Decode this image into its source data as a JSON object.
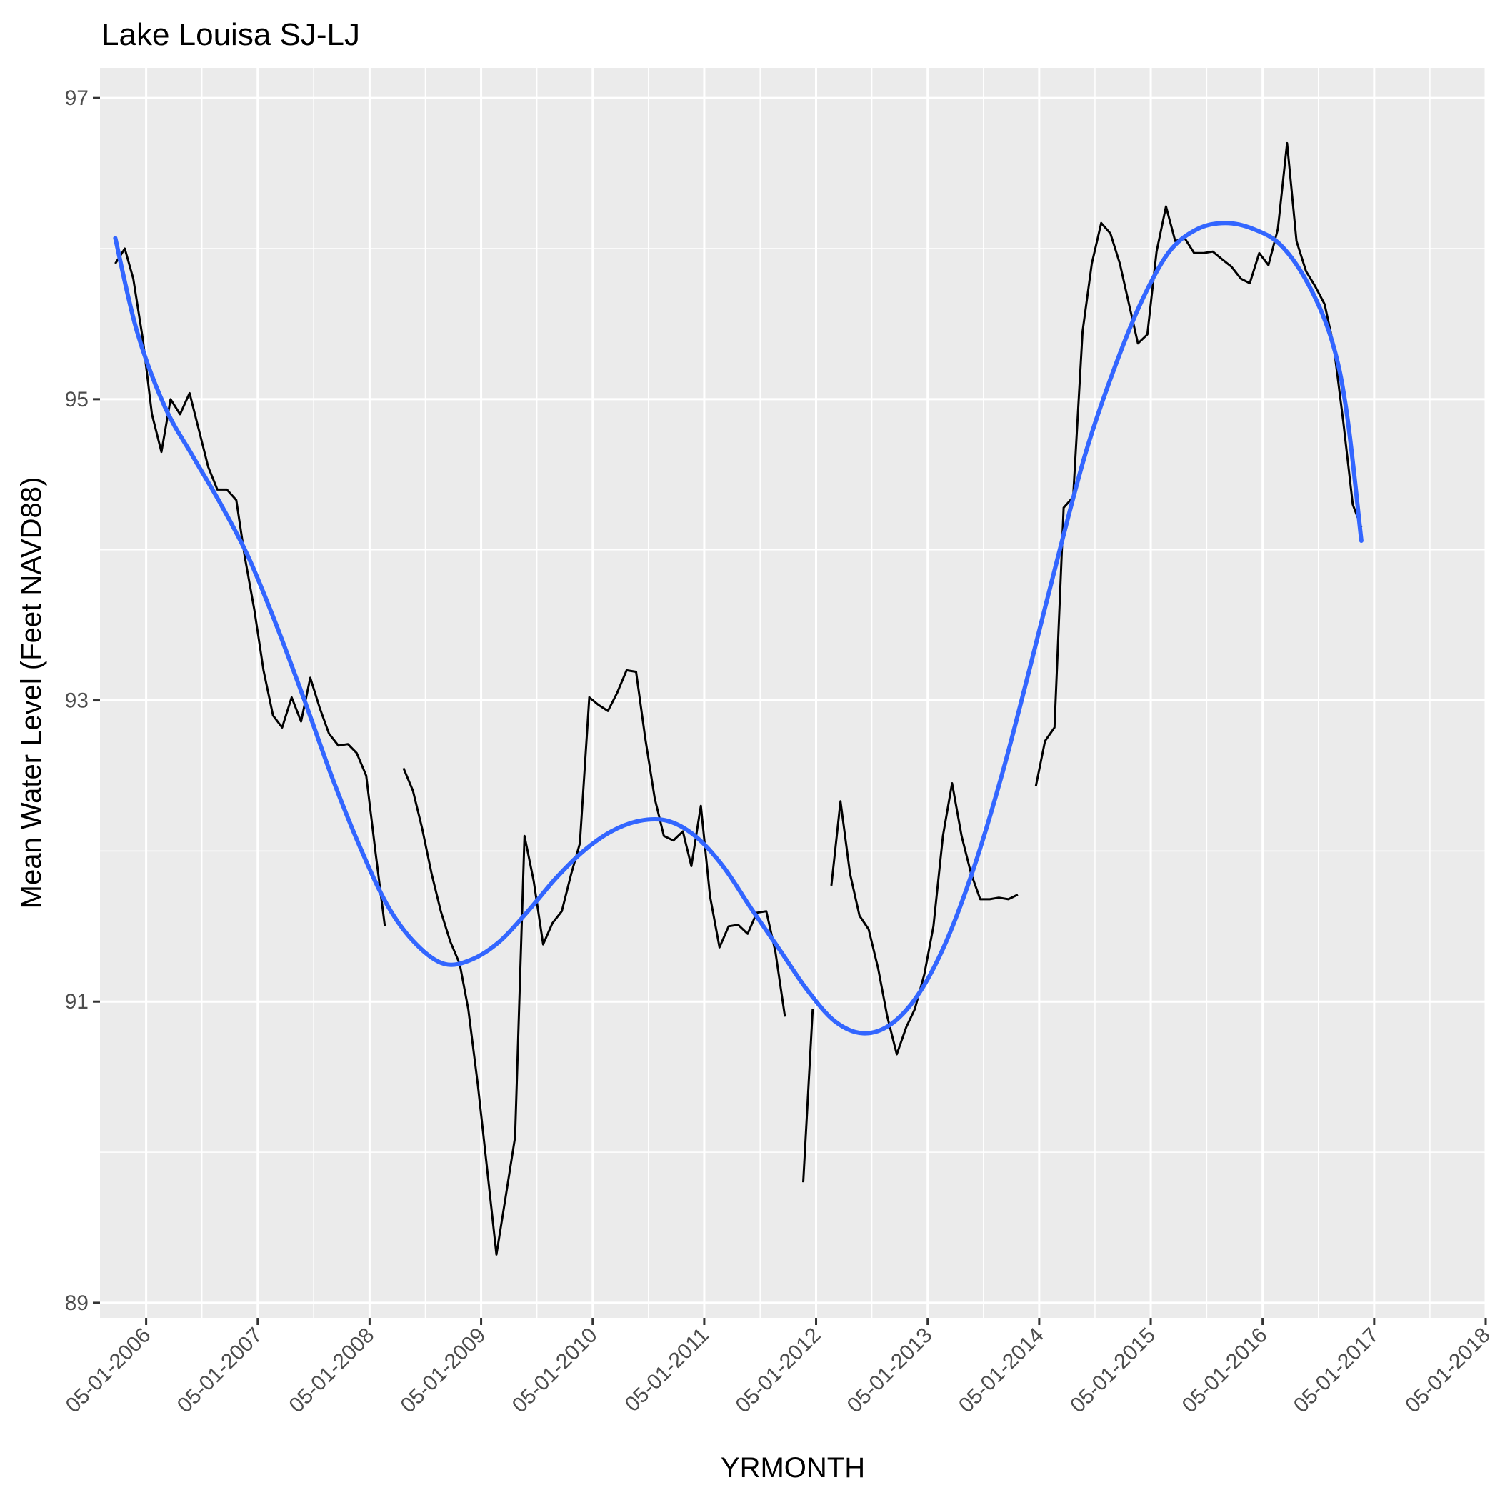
{
  "chart_data": {
    "type": "line",
    "title": "Lake Louisa SJ-LJ",
    "xlabel": "YRMONTH",
    "ylabel": "Mean Water Level (Feet NAVD88)",
    "x_axis": {
      "kind": "date",
      "range": [
        "2005-12-01",
        "2018-05-01"
      ],
      "ticks": [
        "05-01-2006",
        "05-01-2007",
        "05-01-2008",
        "05-01-2009",
        "05-01-2010",
        "05-01-2011",
        "05-01-2012",
        "05-01-2013",
        "05-01-2014",
        "05-01-2015",
        "05-01-2016",
        "05-01-2017",
        "05-01-2018"
      ]
    },
    "y_axis": {
      "range": [
        88.9,
        97.2
      ],
      "ticks": [
        89,
        91,
        93,
        95,
        97
      ]
    },
    "grid": true,
    "legend": "none",
    "colors": {
      "panel_background": "#ebebeb",
      "grid": "#ffffff",
      "observed_line": "#000000",
      "smooth_line": "#3366ff"
    },
    "series": [
      {
        "role": "observed",
        "segments": [
          [
            [
              "2006-01-20",
              95.9
            ],
            [
              "2006-02-20",
              96.0
            ],
            [
              "2006-03-20",
              95.8
            ],
            [
              "2006-04-20",
              95.4
            ],
            [
              "2006-05-20",
              94.9
            ],
            [
              "2006-06-20",
              94.65
            ],
            [
              "2006-07-20",
              95.0
            ],
            [
              "2006-08-20",
              94.9
            ],
            [
              "2006-09-20",
              95.04
            ],
            [
              "2006-10-20",
              94.8
            ],
            [
              "2006-11-20",
              94.55
            ],
            [
              "2006-12-20",
              94.4
            ],
            [
              "2007-01-20",
              94.4
            ],
            [
              "2007-02-20",
              94.33
            ],
            [
              "2007-03-20",
              93.95
            ],
            [
              "2007-04-20",
              93.6
            ],
            [
              "2007-05-20",
              93.2
            ],
            [
              "2007-06-20",
              92.9
            ],
            [
              "2007-07-20",
              92.82
            ],
            [
              "2007-08-20",
              93.02
            ],
            [
              "2007-09-20",
              92.86
            ],
            [
              "2007-10-20",
              93.15
            ],
            [
              "2007-11-20",
              92.95
            ],
            [
              "2007-12-20",
              92.78
            ],
            [
              "2008-01-20",
              92.7
            ],
            [
              "2008-02-20",
              92.71
            ],
            [
              "2008-03-20",
              92.65
            ],
            [
              "2008-04-20",
              92.5
            ],
            [
              "2008-05-20",
              92.0
            ],
            [
              "2008-06-20",
              91.5
            ]
          ],
          [
            [
              "2008-08-20",
              92.55
            ],
            [
              "2008-09-20",
              92.4
            ],
            [
              "2008-10-20",
              92.15
            ],
            [
              "2008-11-20",
              91.85
            ],
            [
              "2008-12-20",
              91.6
            ],
            [
              "2009-01-20",
              91.4
            ],
            [
              "2009-02-20",
              91.25
            ],
            [
              "2009-03-20",
              90.95
            ],
            [
              "2009-04-20",
              90.45
            ],
            [
              "2009-05-20",
              89.9
            ],
            [
              "2009-06-20",
              89.32
            ],
            [
              "2009-07-20",
              89.7
            ],
            [
              "2009-08-20",
              90.1
            ],
            [
              "2009-09-20",
              92.1
            ],
            [
              "2009-10-20",
              91.8
            ],
            [
              "2009-11-20",
              91.38
            ],
            [
              "2009-12-20",
              91.52
            ],
            [
              "2010-01-20",
              91.6
            ],
            [
              "2010-02-20",
              91.85
            ],
            [
              "2010-03-20",
              92.05
            ],
            [
              "2010-04-20",
              93.02
            ],
            [
              "2010-05-20",
              92.97
            ],
            [
              "2010-06-20",
              92.93
            ],
            [
              "2010-07-20",
              93.05
            ],
            [
              "2010-08-20",
              93.2
            ],
            [
              "2010-09-20",
              93.19
            ],
            [
              "2010-10-20",
              92.75
            ],
            [
              "2010-11-20",
              92.35
            ],
            [
              "2010-12-20",
              92.1
            ],
            [
              "2011-01-20",
              92.07
            ],
            [
              "2011-02-20",
              92.13
            ],
            [
              "2011-03-20",
              91.9
            ],
            [
              "2011-04-20",
              92.3
            ],
            [
              "2011-05-20",
              91.7
            ],
            [
              "2011-06-20",
              91.36
            ],
            [
              "2011-07-20",
              91.5
            ],
            [
              "2011-08-20",
              91.51
            ],
            [
              "2011-09-20",
              91.45
            ],
            [
              "2011-10-20",
              91.59
            ],
            [
              "2011-11-20",
              91.6
            ],
            [
              "2011-12-20",
              91.33
            ],
            [
              "2012-01-20",
              90.9
            ]
          ],
          [
            [
              "2012-03-20",
              89.8
            ],
            [
              "2012-04-20",
              90.95
            ]
          ],
          [
            [
              "2012-06-20",
              91.77
            ],
            [
              "2012-07-20",
              92.33
            ],
            [
              "2012-08-20",
              91.85
            ],
            [
              "2012-09-20",
              91.57
            ],
            [
              "2012-10-20",
              91.48
            ],
            [
              "2012-11-20",
              91.22
            ],
            [
              "2012-12-20",
              90.9
            ],
            [
              "2013-01-20",
              90.65
            ],
            [
              "2013-02-20",
              90.83
            ],
            [
              "2013-03-20",
              90.95
            ],
            [
              "2013-04-20",
              91.18
            ],
            [
              "2013-05-20",
              91.5
            ],
            [
              "2013-06-20",
              92.1
            ],
            [
              "2013-07-20",
              92.45
            ],
            [
              "2013-08-20",
              92.1
            ],
            [
              "2013-09-20",
              91.85
            ],
            [
              "2013-10-20",
              91.68
            ],
            [
              "2013-11-20",
              91.68
            ],
            [
              "2013-12-20",
              91.69
            ],
            [
              "2014-01-20",
              91.68
            ],
            [
              "2014-02-20",
              91.71
            ]
          ],
          [
            [
              "2014-04-20",
              92.43
            ],
            [
              "2014-05-20",
              92.73
            ],
            [
              "2014-06-20",
              92.82
            ],
            [
              "2014-07-20",
              94.28
            ],
            [
              "2014-08-20",
              94.35
            ],
            [
              "2014-09-20",
              95.45
            ],
            [
              "2014-10-20",
              95.9
            ],
            [
              "2014-11-20",
              96.17
            ],
            [
              "2014-12-20",
              96.1
            ],
            [
              "2015-01-20",
              95.9
            ],
            [
              "2015-02-20",
              95.62
            ],
            [
              "2015-03-20",
              95.37
            ],
            [
              "2015-04-20",
              95.43
            ],
            [
              "2015-05-20",
              95.98
            ],
            [
              "2015-06-20",
              96.28
            ],
            [
              "2015-07-20",
              96.05
            ],
            [
              "2015-08-20",
              96.07
            ],
            [
              "2015-09-20",
              95.97
            ],
            [
              "2015-10-20",
              95.97
            ],
            [
              "2015-11-20",
              95.98
            ],
            [
              "2015-12-20",
              95.93
            ],
            [
              "2016-01-20",
              95.88
            ],
            [
              "2016-02-20",
              95.8
            ],
            [
              "2016-03-20",
              95.77
            ],
            [
              "2016-04-20",
              95.97
            ],
            [
              "2016-05-20",
              95.89
            ],
            [
              "2016-06-20",
              96.13
            ],
            [
              "2016-07-20",
              96.7
            ],
            [
              "2016-08-20",
              96.05
            ],
            [
              "2016-09-20",
              95.85
            ],
            [
              "2016-10-20",
              95.75
            ],
            [
              "2016-11-20",
              95.63
            ],
            [
              "2016-12-20",
              95.35
            ],
            [
              "2017-01-20",
              94.85
            ],
            [
              "2017-02-20",
              94.3
            ],
            [
              "2017-03-20",
              94.15
            ]
          ]
        ]
      },
      {
        "role": "smooth",
        "points": [
          [
            "2006-01-20",
            96.07
          ],
          [
            "2006-04-01",
            95.45
          ],
          [
            "2006-07-01",
            94.95
          ],
          [
            "2006-10-01",
            94.62
          ],
          [
            "2007-01-01",
            94.3
          ],
          [
            "2007-04-01",
            93.95
          ],
          [
            "2007-07-01",
            93.5
          ],
          [
            "2007-10-01",
            93.0
          ],
          [
            "2008-01-01",
            92.48
          ],
          [
            "2008-04-01",
            92.02
          ],
          [
            "2008-07-01",
            91.63
          ],
          [
            "2008-10-01",
            91.38
          ],
          [
            "2009-01-01",
            91.25
          ],
          [
            "2009-04-01",
            91.28
          ],
          [
            "2009-07-01",
            91.4
          ],
          [
            "2009-10-01",
            91.6
          ],
          [
            "2010-01-01",
            91.82
          ],
          [
            "2010-04-01",
            92.0
          ],
          [
            "2010-07-01",
            92.13
          ],
          [
            "2010-10-01",
            92.2
          ],
          [
            "2011-01-01",
            92.2
          ],
          [
            "2011-04-01",
            92.1
          ],
          [
            "2011-07-01",
            91.9
          ],
          [
            "2011-10-01",
            91.62
          ],
          [
            "2012-01-01",
            91.35
          ],
          [
            "2012-04-01",
            91.08
          ],
          [
            "2012-07-01",
            90.87
          ],
          [
            "2012-10-01",
            90.79
          ],
          [
            "2013-01-01",
            90.85
          ],
          [
            "2013-04-01",
            91.05
          ],
          [
            "2013-07-01",
            91.4
          ],
          [
            "2013-10-01",
            91.9
          ],
          [
            "2014-01-01",
            92.52
          ],
          [
            "2014-04-01",
            93.22
          ],
          [
            "2014-07-01",
            93.95
          ],
          [
            "2014-10-01",
            94.65
          ],
          [
            "2015-01-01",
            95.2
          ],
          [
            "2015-04-01",
            95.65
          ],
          [
            "2015-07-01",
            95.98
          ],
          [
            "2015-10-01",
            96.13
          ],
          [
            "2016-01-01",
            96.17
          ],
          [
            "2016-04-01",
            96.13
          ],
          [
            "2016-07-01",
            96.02
          ],
          [
            "2016-10-01",
            95.75
          ],
          [
            "2016-12-15",
            95.38
          ],
          [
            "2017-02-01",
            94.9
          ],
          [
            "2017-03-20",
            94.06
          ]
        ]
      }
    ]
  }
}
